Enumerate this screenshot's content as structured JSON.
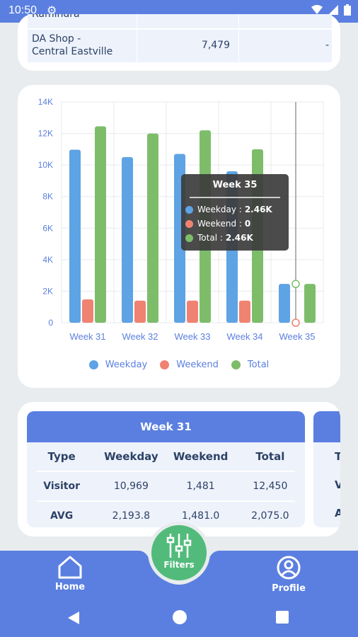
{
  "status_bar": {
    "time": "10:50"
  },
  "shop_table": {
    "partial_row_name": "Ramindra",
    "row": {
      "name_line1": "DA Shop -",
      "name_line2": "Central Eastville",
      "value": "7,479",
      "extra": "-"
    }
  },
  "chart_data": {
    "type": "bar",
    "categories": [
      "Week 31",
      "Week 32",
      "Week 33",
      "Week 34",
      "Week 35"
    ],
    "series": [
      {
        "name": "Weekday",
        "color": "#5ea3e4",
        "values": [
          10969,
          10500,
          10700,
          9600,
          2460
        ]
      },
      {
        "name": "Weekend",
        "color": "#f08272",
        "values": [
          1481,
          1400,
          1400,
          1400,
          0
        ]
      },
      {
        "name": "Total",
        "color": "#7dbd6a",
        "values": [
          12450,
          12000,
          12200,
          11000,
          2460
        ]
      }
    ],
    "y_ticks": [
      "0",
      "2K",
      "4K",
      "6K",
      "8K",
      "10K",
      "12K",
      "14K"
    ],
    "ylim": [
      0,
      14000
    ],
    "legend_position": "bottom",
    "grid": true
  },
  "tooltip": {
    "title": "Week 35",
    "lines": [
      {
        "label": "Weekday :",
        "value": "2.46K"
      },
      {
        "label": "Weekend :",
        "value": "0"
      },
      {
        "label": "Total :",
        "value": "2.46K"
      }
    ]
  },
  "week_table": {
    "title": "Week 31",
    "headers": [
      "Type",
      "Weekday",
      "Weekend",
      "Total"
    ],
    "rows": [
      [
        "Visitor",
        "10,969",
        "1,481",
        "12,450"
      ],
      [
        "AVG",
        "2,193.8",
        "1,481.0",
        "2,075.0"
      ]
    ],
    "next_partial": [
      "T",
      "Vi",
      "A"
    ]
  },
  "nav": {
    "home": "Home",
    "filters": "Filters",
    "profile": "Profile"
  }
}
